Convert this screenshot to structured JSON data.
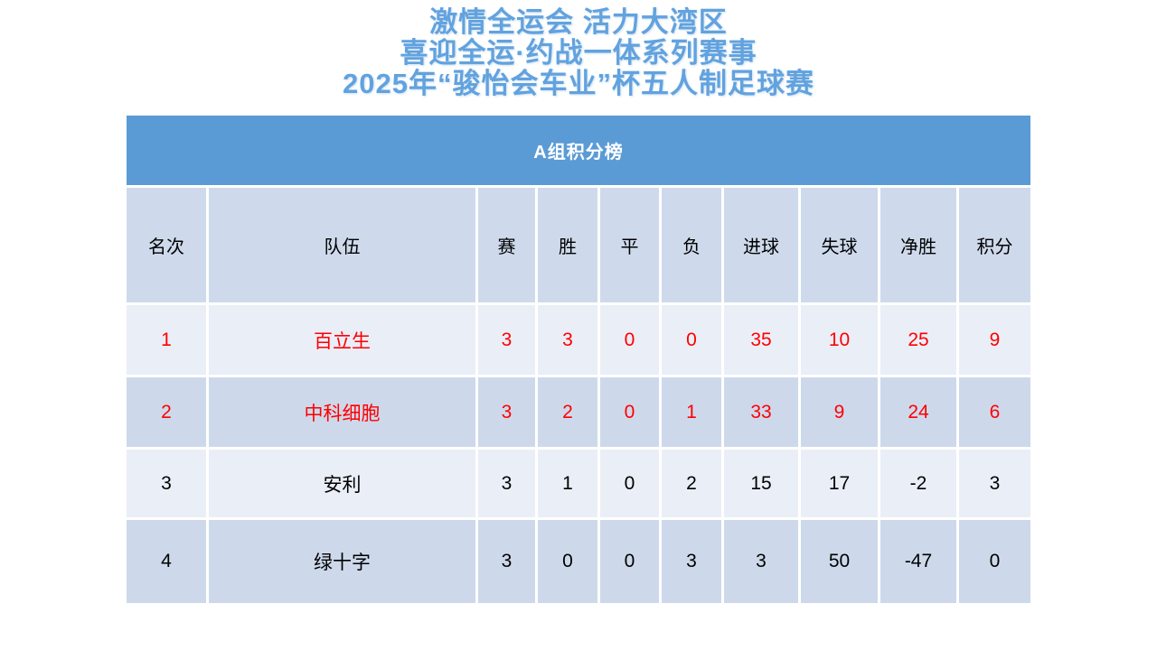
{
  "titles": {
    "line1": "激情全运会 活力大湾区",
    "line2": "喜迎全运·约战一体系列赛事",
    "line3": "2025年“骏怡会车业”杯五人制足球赛"
  },
  "table": {
    "header": "A组积分榜",
    "columns": [
      "名次",
      "队伍",
      "赛",
      "胜",
      "平",
      "负",
      "进球",
      "失球",
      "净胜",
      "积分"
    ],
    "rows": [
      {
        "rank": "1",
        "team": "百立生",
        "stats": [
          "3",
          "3",
          "0",
          "0",
          "35",
          "10",
          "25",
          "9"
        ],
        "highlighted": true
      },
      {
        "rank": "2",
        "team": "中科细胞",
        "stats": [
          "3",
          "2",
          "0",
          "1",
          "33",
          "9",
          "24",
          "6"
        ],
        "highlighted": true
      },
      {
        "rank": "3",
        "team": "安利",
        "stats": [
          "3",
          "1",
          "0",
          "2",
          "15",
          "17",
          "-2",
          "3"
        ],
        "highlighted": false
      },
      {
        "rank": "4",
        "team": "绿十字",
        "stats": [
          "3",
          "0",
          "0",
          "3",
          "3",
          "50",
          "-47",
          "0"
        ],
        "highlighted": false
      }
    ]
  },
  "colors": {
    "accent_blue": "#5B9BD5",
    "title_blue": "#62A2DE",
    "header_band": "#CEDAEC",
    "band_light": "#EAEEF7",
    "band_dark": "#CDD9EB",
    "highlight_red": "#FF0000",
    "header_text": "#FFFFFF",
    "body_text": "#000000"
  }
}
